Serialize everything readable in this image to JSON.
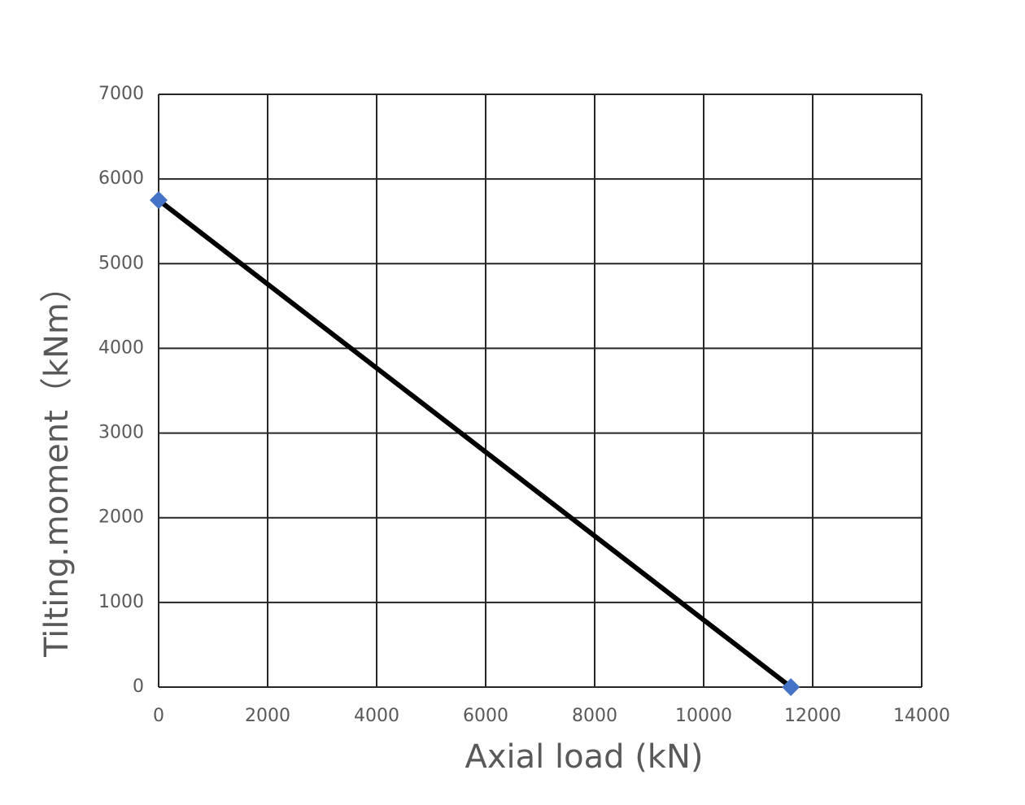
{
  "chart_data": {
    "type": "line",
    "x_label": "Axial load (kN)",
    "y_label": "Tilting.moment（kNm）",
    "series": [
      {
        "x": [
          0,
          11600
        ],
        "values": [
          5750,
          0
        ],
        "color": "#000000",
        "marker_color": "#4472c4"
      }
    ],
    "xlim": [
      0,
      14000
    ],
    "xticks": [
      0,
      2000,
      4000,
      6000,
      8000,
      10000,
      12000,
      14000
    ],
    "ylim": [
      0,
      7000
    ],
    "yticks": [
      0,
      1000,
      2000,
      3000,
      4000,
      5000,
      6000,
      7000
    ],
    "grid": true
  }
}
